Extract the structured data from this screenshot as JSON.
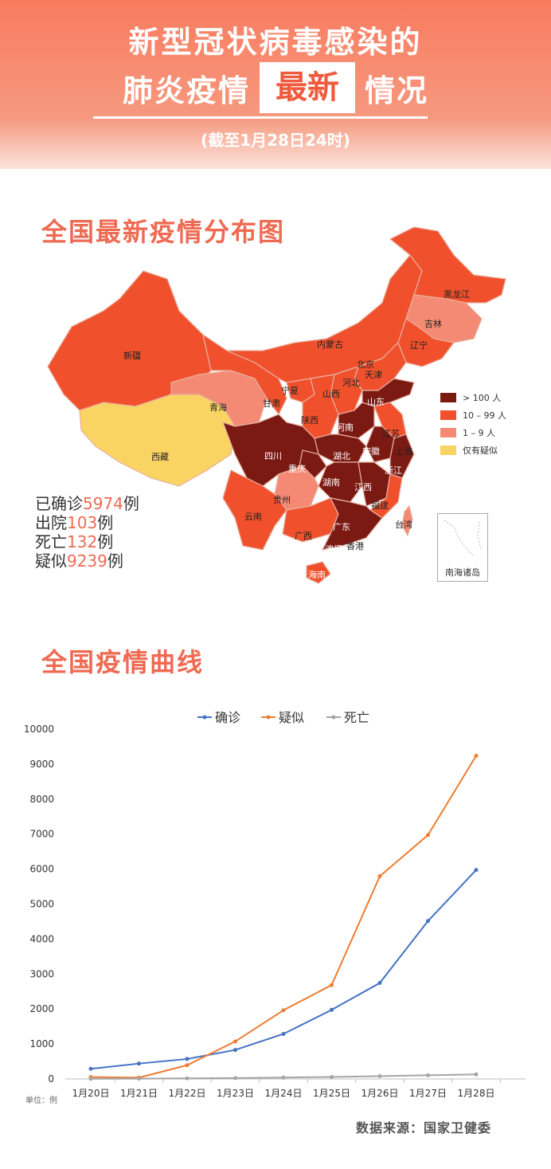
{
  "header": {
    "title_line1": "新型冠状病毒感染的",
    "title_line2_left": "肺炎疫情",
    "title_line2_highlight": "最新",
    "title_line2_right": "情况",
    "subtitle": "(截至1月28日24时)"
  },
  "map_section": {
    "title": "全国最新疫情分布图",
    "colors": {
      "over100": "#7b1a13",
      "10to99": "#f0512c",
      "1to9": "#f48a73",
      "suspected": "#f9d463"
    },
    "legend": [
      {
        "label": "> 100 人",
        "color": "#7b1a13"
      },
      {
        "label": "10 – 99 人",
        "color": "#f0512c"
      },
      {
        "label": "1 – 9 人",
        "color": "#f48a73"
      },
      {
        "label": "仅有疑似",
        "color": "#f9d463"
      }
    ],
    "provinces": {
      "heilongjiang": "黑龙江",
      "jilin": "吉林",
      "liaoning": "辽宁",
      "neimenggu": "内蒙古",
      "beijing": "北京",
      "tianjin": "天津",
      "hebei": "河北",
      "shanxi": "山西",
      "ningxia": "宁夏",
      "gansu": "甘肃",
      "xinjiang": "新疆",
      "qinghai": "青海",
      "xizang": "西藏",
      "shaanxi": "陕西",
      "henan": "河南",
      "shandong": "山东",
      "jiangsu": "江苏",
      "shanghai": "上海",
      "anhui": "安徽",
      "hubei": "湖北",
      "sichuan": "四川",
      "chongqing": "重庆",
      "zhejiang": "浙江",
      "hunan": "湖南",
      "jiangxi": "江西",
      "guizhou": "贵州",
      "yunnan": "云南",
      "guangxi": "广西",
      "guangdong": "广东",
      "fujian": "福建",
      "taiwan": "台湾",
      "aomen": "澳门",
      "xianggang": "香港",
      "hainan": "海南"
    },
    "inset_label": "南海诸岛",
    "stats": [
      {
        "prefix": "已确诊",
        "value": "5974",
        "suffix": "例"
      },
      {
        "prefix": "出院",
        "value": "103",
        "suffix": "例"
      },
      {
        "prefix": "死亡",
        "value": "132",
        "suffix": "例"
      },
      {
        "prefix": "疑似",
        "value": "9239",
        "suffix": "例"
      }
    ]
  },
  "curve_section": {
    "title": "全国疫情曲线",
    "unit_label": "单位：例",
    "source": "数据来源：国家卫健委"
  },
  "chart_data": {
    "type": "line",
    "title": "",
    "xlabel": "",
    "ylabel": "",
    "x": [
      "1月20日",
      "1月21日",
      "1月22日",
      "1月23日",
      "1月24日",
      "1月25日",
      "1月26日",
      "1月27日",
      "1月28日"
    ],
    "ylim": [
      0,
      10000
    ],
    "yticks": [
      0,
      1000,
      2000,
      3000,
      4000,
      5000,
      6000,
      7000,
      8000,
      9000,
      10000
    ],
    "grid": false,
    "legend_position": "top",
    "series": [
      {
        "name": "确诊",
        "color": "#4472c4",
        "values": [
          291,
          440,
          571,
          830,
          1287,
          1975,
          2744,
          4515,
          5974
        ]
      },
      {
        "name": "疑似",
        "color": "#ed7d31",
        "values": [
          54,
          37,
          393,
          1072,
          1965,
          2684,
          5794,
          6973,
          9239
        ]
      },
      {
        "name": "死亡",
        "color": "#a5a5a5",
        "values": [
          6,
          9,
          17,
          25,
          41,
          56,
          80,
          106,
          132
        ]
      }
    ]
  }
}
